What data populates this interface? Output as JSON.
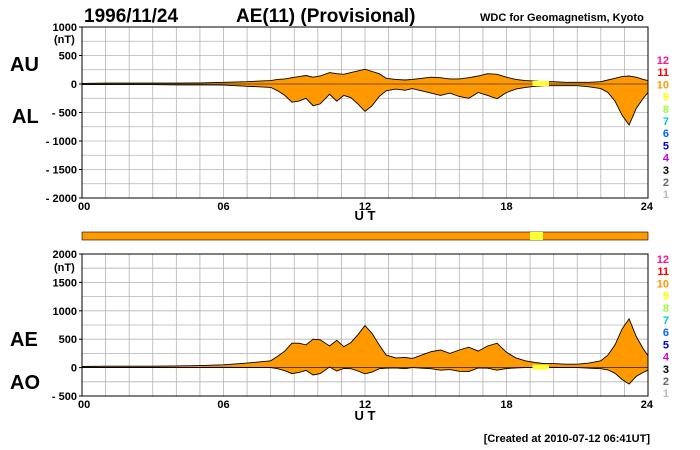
{
  "header": {
    "date": "1996/11/24",
    "title": "AE(11) (Provisional)",
    "source": "WDC for Geomagnetism, Kyoto"
  },
  "footer": {
    "created": "[Created at 2010-07-12 06:41UT]"
  },
  "colors": {
    "fill": "#ff9900",
    "line": "#000000",
    "grid": "#b4b4b4",
    "highlight": "#ffff33"
  },
  "legend": {
    "labels": [
      "12",
      "11",
      "10",
      "9",
      "8",
      "7",
      "6",
      "5",
      "4",
      "3",
      "2",
      "1"
    ],
    "colors": [
      "#ff1493",
      "#ff0000",
      "#ff9900",
      "#ffff00",
      "#99ff33",
      "#00cccc",
      "#0066ff",
      "#0000cc",
      "#cc00cc",
      "#000000",
      "#666666",
      "#bbbbbb"
    ]
  },
  "chart_data": [
    {
      "type": "area",
      "name": "AU/AL",
      "unit": "(nT)",
      "side_labels": [
        "AU",
        "AL"
      ],
      "xlabel": "U T",
      "xlim": [
        0,
        24
      ],
      "ylim": [
        -2000,
        1000
      ],
      "yticks": [
        1000,
        500,
        0,
        -500,
        -1000,
        -1500,
        -2000
      ],
      "ytick_labels": [
        "1000",
        "500",
        "0",
        "- 500",
        "- 1000",
        "- 1500",
        "- 2000"
      ],
      "xticks": [
        0,
        6,
        12,
        18,
        24
      ],
      "xtick_labels": [
        "00",
        "06",
        "12",
        "18",
        "24"
      ],
      "x": [
        0,
        1,
        2,
        3,
        4,
        5,
        6,
        7,
        7.5,
        8,
        8.3,
        8.6,
        8.9,
        9.2,
        9.5,
        9.8,
        10.1,
        10.5,
        10.8,
        11.1,
        11.4,
        11.7,
        12,
        12.3,
        12.6,
        12.9,
        13.3,
        13.7,
        14,
        14.4,
        14.8,
        15.2,
        15.6,
        16,
        16.4,
        16.8,
        17.2,
        17.6,
        18,
        18.4,
        18.8,
        19.2,
        19.6,
        20,
        20.5,
        21,
        21.5,
        22,
        22.3,
        22.6,
        22.9,
        23.2,
        23.5,
        23.8,
        24
      ],
      "AU": [
        10,
        15,
        15,
        15,
        15,
        20,
        30,
        40,
        50,
        60,
        80,
        90,
        110,
        130,
        150,
        120,
        140,
        200,
        180,
        170,
        200,
        230,
        260,
        220,
        180,
        100,
        80,
        70,
        80,
        100,
        120,
        110,
        90,
        90,
        110,
        140,
        180,
        170,
        120,
        80,
        60,
        50,
        40,
        40,
        30,
        30,
        30,
        40,
        70,
        100,
        130,
        140,
        120,
        80,
        60
      ],
      "AL": [
        -10,
        -10,
        -10,
        -10,
        -15,
        -15,
        -20,
        -40,
        -50,
        -60,
        -120,
        -200,
        -320,
        -300,
        -250,
        -380,
        -350,
        -180,
        -300,
        -200,
        -240,
        -350,
        -480,
        -380,
        -220,
        -120,
        -90,
        -110,
        -80,
        -120,
        -160,
        -200,
        -160,
        -220,
        -250,
        -150,
        -200,
        -260,
        -150,
        -90,
        -60,
        -40,
        -30,
        -30,
        -30,
        -30,
        -50,
        -80,
        -150,
        -300,
        -550,
        -720,
        -430,
        -250,
        -150
      ]
    },
    {
      "type": "area",
      "name": "AE/AO",
      "unit": "(nT)",
      "side_labels": [
        "AE",
        "AO"
      ],
      "xlabel": "U T",
      "xlim": [
        0,
        24
      ],
      "ylim": [
        -500,
        2000
      ],
      "yticks": [
        2000,
        1500,
        1000,
        500,
        0,
        -500
      ],
      "ytick_labels": [
        "2000",
        "1500",
        "1000",
        "500",
        "0",
        "- 500"
      ],
      "xticks": [
        0,
        6,
        12,
        18,
        24
      ],
      "xtick_labels": [
        "00",
        "06",
        "12",
        "18",
        "24"
      ],
      "x": [
        0,
        1,
        2,
        3,
        4,
        5,
        6,
        7,
        7.5,
        8,
        8.3,
        8.6,
        8.9,
        9.2,
        9.5,
        9.8,
        10.1,
        10.5,
        10.8,
        11.1,
        11.4,
        11.7,
        12,
        12.3,
        12.6,
        12.9,
        13.3,
        13.7,
        14,
        14.4,
        14.8,
        15.2,
        15.6,
        16,
        16.4,
        16.8,
        17.2,
        17.6,
        18,
        18.4,
        18.8,
        19.2,
        19.6,
        20,
        20.5,
        21,
        21.5,
        22,
        22.3,
        22.6,
        22.9,
        23.2,
        23.5,
        23.8,
        24
      ],
      "AE": [
        20,
        25,
        25,
        25,
        30,
        35,
        50,
        80,
        100,
        120,
        200,
        290,
        430,
        430,
        400,
        500,
        490,
        380,
        480,
        370,
        440,
        580,
        740,
        600,
        400,
        220,
        170,
        180,
        160,
        220,
        280,
        310,
        250,
        310,
        360,
        290,
        380,
        430,
        270,
        170,
        120,
        90,
        70,
        70,
        60,
        60,
        80,
        120,
        220,
        400,
        680,
        860,
        550,
        330,
        210
      ],
      "AO": [
        0,
        2,
        2,
        2,
        0,
        2,
        5,
        0,
        0,
        0,
        -20,
        -55,
        -105,
        -85,
        -50,
        -130,
        -105,
        10,
        -60,
        -15,
        -20,
        -60,
        -110,
        -80,
        -20,
        -10,
        -5,
        -20,
        0,
        -10,
        -20,
        -45,
        -35,
        -65,
        -70,
        -5,
        -10,
        -45,
        -15,
        -5,
        0,
        5,
        5,
        5,
        0,
        0,
        -10,
        -20,
        -40,
        -100,
        -210,
        -290,
        -155,
        -85,
        -45
      ]
    }
  ]
}
